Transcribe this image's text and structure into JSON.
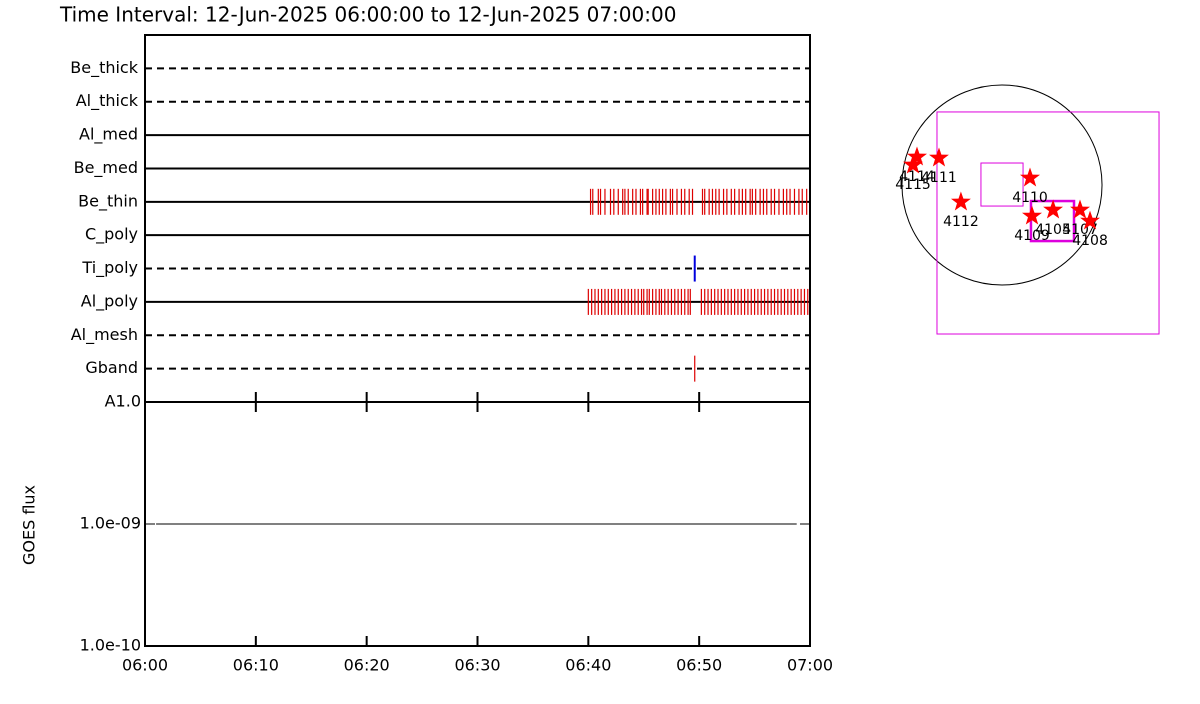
{
  "chart_data": [
    {
      "type": "timeline",
      "title": "Time Interval: 12-Jun-2025 06:00:00 to 12-Jun-2025 07:00:00",
      "categories": [
        "Be_thick",
        "Al_thick",
        "Al_med",
        "Be_med",
        "Be_thin",
        "C_poly",
        "Ti_poly",
        "Al_poly",
        "Al_mesh",
        "Gband"
      ],
      "linestyles": [
        "dashed",
        "dashed",
        "solid",
        "solid",
        "solid",
        "solid",
        "dashed",
        "solid",
        "dashed",
        "dashed"
      ],
      "event_colors": [
        null,
        null,
        null,
        null,
        "#dd0000",
        null,
        "#0000dd",
        "#dd0000",
        null,
        "#dd0000"
      ],
      "events": [
        [],
        [],
        [],
        [],
        [
          40.2,
          40.4,
          40.9,
          41.1,
          41.5,
          42.0,
          42.3,
          42.7,
          43.1,
          43.3,
          43.6,
          44.0,
          44.3,
          44.7,
          44.9,
          45.3,
          45.4,
          45.8,
          46.1,
          46.4,
          46.7,
          47.0,
          47.4,
          47.6,
          48.0,
          48.4,
          48.7,
          49.1,
          49.4,
          50.3,
          50.5,
          50.9,
          51.2,
          51.5,
          51.8,
          52.2,
          52.5,
          52.9,
          53.2,
          53.6,
          53.9,
          54.2,
          54.6,
          54.8,
          55.1,
          55.5,
          55.8,
          56.1,
          56.5,
          56.8,
          57.2,
          57.6,
          57.9,
          58.2,
          58.6,
          59.0,
          59.3,
          59.7
        ],
        [],
        [
          49.6
        ],
        [
          40.0,
          40.3,
          40.6,
          40.9,
          41.2,
          41.5,
          41.8,
          42.1,
          42.4,
          42.7,
          43.0,
          43.3,
          43.6,
          43.9,
          44.2,
          44.5,
          44.8,
          45.0,
          45.3,
          45.5,
          45.8,
          46.1,
          46.4,
          46.6,
          46.9,
          47.2,
          47.5,
          47.8,
          48.1,
          48.4,
          48.7,
          49.0,
          49.2,
          50.2,
          50.5,
          50.8,
          51.1,
          51.4,
          51.7,
          52.0,
          52.3,
          52.6,
          52.9,
          53.2,
          53.5,
          53.8,
          54.1,
          54.4,
          54.7,
          55.0,
          55.3,
          55.6,
          55.9,
          56.2,
          56.5,
          56.8,
          57.1,
          57.4,
          57.7,
          58.0,
          58.3,
          58.6,
          58.9,
          59.2,
          59.5,
          59.8
        ],
        [],
        [
          49.6
        ]
      ],
      "xlim": [
        0,
        60
      ]
    },
    {
      "type": "line",
      "ylabel": "GOES flux",
      "log_scale": true,
      "ylim": [
        1e-10,
        1e-08
      ],
      "yticks": [
        {
          "value": 1e-10,
          "label": "1.0e-10"
        },
        {
          "value": 1e-09,
          "label": "1.0e-09"
        },
        {
          "value": 1e-08,
          "label": "A1.0"
        }
      ],
      "xlim": [
        0,
        60
      ],
      "xticks": [
        {
          "value": 0,
          "label": "06:00"
        },
        {
          "value": 10,
          "label": "06:10"
        },
        {
          "value": 20,
          "label": "06:20"
        },
        {
          "value": 30,
          "label": "06:30"
        },
        {
          "value": 40,
          "label": "06:40"
        },
        {
          "value": 50,
          "label": "06:50"
        },
        {
          "value": 60,
          "label": "07:00"
        }
      ],
      "x": [
        1,
        58.8
      ],
      "values": [
        1e-09,
        1e-09
      ],
      "color": "#000000"
    },
    {
      "type": "map",
      "xlim": [
        -1500,
        1500
      ],
      "ylim": [
        -1500,
        1500
      ],
      "limb_radius": 960,
      "boxes": [
        {
          "x": [
            -624,
            1507
          ],
          "y": [
            -1430,
            701
          ],
          "color": "#dd00dd",
          "width": 1
        },
        {
          "x": [
            -202,
            202
          ],
          "y": [
            -202,
            211
          ],
          "color": "#dd00dd",
          "width": 1
        },
        {
          "x": [
            278,
            691
          ],
          "y": [
            -538,
            -154
          ],
          "color": "#dd00dd",
          "width": 2.5
        }
      ],
      "point_color": "#ff0000",
      "labels": [
        "4114",
        "4115",
        "4111",
        "4112",
        "4110",
        "4109",
        "4105",
        "4107",
        "4108"
      ],
      "x": [
        -816,
        -854,
        -605,
        -394,
        269,
        288,
        490,
        749,
        845
      ],
      "y": [
        269,
        192,
        259,
        -163,
        67,
        -298,
        -240,
        -240,
        -346
      ]
    }
  ]
}
